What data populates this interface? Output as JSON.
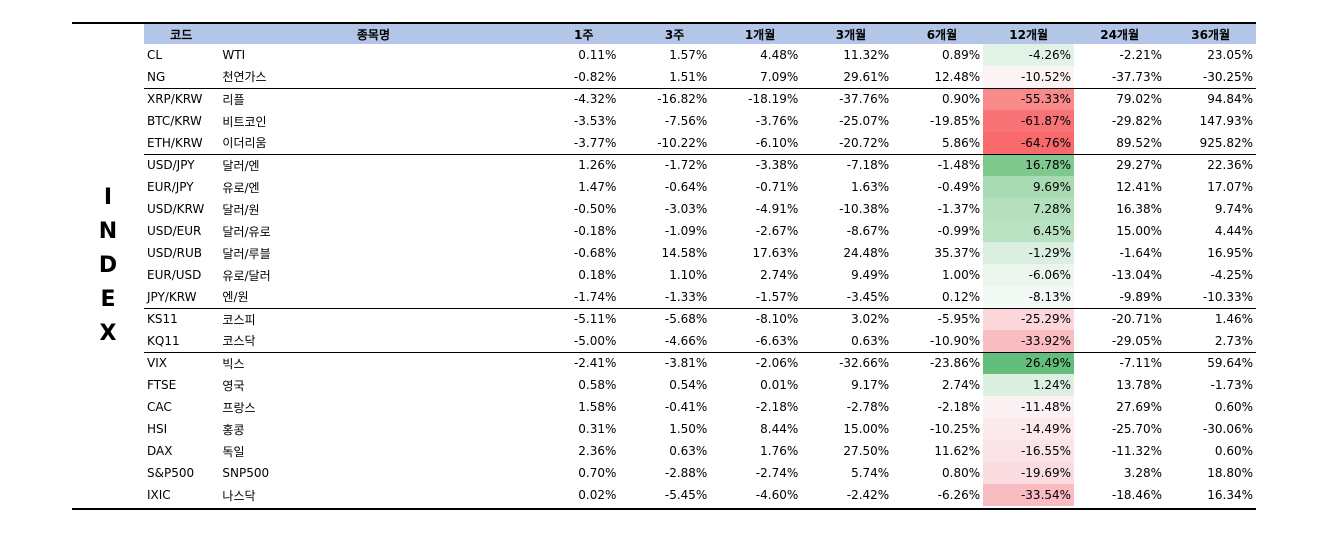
{
  "side_label": [
    "I",
    "N",
    "D",
    "E",
    "X"
  ],
  "headers": [
    "코드",
    "종목명",
    "1주",
    "3주",
    "1개월",
    "3개월",
    "6개월",
    "12개월",
    "24개월",
    "36개월"
  ],
  "rows": [
    {
      "code": "CL",
      "name": "WTI",
      "v": [
        "0.11%",
        "1.57%",
        "4.48%",
        "11.32%",
        "0.89%",
        "-4.26%",
        "-2.21%",
        "23.05%"
      ],
      "bg": "#e1f2e6",
      "gstart": false
    },
    {
      "code": "NG",
      "name": "천연가스",
      "v": [
        "-0.82%",
        "1.51%",
        "7.09%",
        "29.61%",
        "12.48%",
        "-10.52%",
        "-37.73%",
        "-30.25%"
      ],
      "bg": "#fcf3f5",
      "gstart": false
    },
    {
      "code": "XRP/KRW",
      "name": "리플",
      "v": [
        "-4.32%",
        "-16.82%",
        "-18.19%",
        "-37.76%",
        "0.90%",
        "-55.33%",
        "79.02%",
        "94.84%"
      ],
      "bg": "#f88a89",
      "gstart": true
    },
    {
      "code": "BTC/KRW",
      "name": "비트코인",
      "v": [
        "-3.53%",
        "-7.56%",
        "-3.76%",
        "-25.07%",
        "-19.85%",
        "-61.87%",
        "-29.82%",
        "147.93%"
      ],
      "bg": "#f77375",
      "gstart": false
    },
    {
      "code": "ETH/KRW",
      "name": "이더리움",
      "v": [
        "-3.77%",
        "-10.22%",
        "-6.10%",
        "-20.72%",
        "5.86%",
        "-64.76%",
        "89.52%",
        "925.82%"
      ],
      "bg": "#f8696b",
      "gstart": false
    },
    {
      "code": "USD/JPY",
      "name": "달러/엔",
      "v": [
        "1.26%",
        "-1.72%",
        "-3.38%",
        "-7.18%",
        "-1.48%",
        "16.78%",
        "29.27%",
        "22.36%"
      ],
      "bg": "#7fc98f",
      "gstart": true
    },
    {
      "code": "EUR/JPY",
      "name": "유로/엔",
      "v": [
        "1.47%",
        "-0.64%",
        "-0.71%",
        "1.63%",
        "-0.49%",
        "9.69%",
        "12.41%",
        "17.07%"
      ],
      "bg": "#a8dab3",
      "gstart": false
    },
    {
      "code": "USD/KRW",
      "name": "달러/원",
      "v": [
        "-0.50%",
        "-3.03%",
        "-4.91%",
        "-10.38%",
        "-1.37%",
        "7.28%",
        "16.38%",
        "9.74%"
      ],
      "bg": "#b3dfbd",
      "gstart": false
    },
    {
      "code": "USD/EUR",
      "name": "달러/유로",
      "v": [
        "-0.18%",
        "-1.09%",
        "-2.67%",
        "-8.67%",
        "-0.99%",
        "6.45%",
        "15.00%",
        "4.44%"
      ],
      "bg": "#b9e2c3",
      "gstart": false
    },
    {
      "code": "USD/RUB",
      "name": "달러/루블",
      "v": [
        "-0.68%",
        "14.58%",
        "17.63%",
        "24.48%",
        "35.37%",
        "-1.29%",
        "-1.64%",
        "16.95%"
      ],
      "bg": "#daefe0",
      "gstart": false
    },
    {
      "code": "EUR/USD",
      "name": "유로/달러",
      "v": [
        "0.18%",
        "1.10%",
        "2.74%",
        "9.49%",
        "1.00%",
        "-6.06%",
        "-13.04%",
        "-4.25%"
      ],
      "bg": "#ebf6ee",
      "gstart": false
    },
    {
      "code": "JPY/KRW",
      "name": "엔/원",
      "v": [
        "-1.74%",
        "-1.33%",
        "-1.57%",
        "-3.45%",
        "0.12%",
        "-8.13%",
        "-9.89%",
        "-10.33%"
      ],
      "bg": "#f3f9f4",
      "gstart": false
    },
    {
      "code": "KS11",
      "name": "코스피",
      "v": [
        "-5.11%",
        "-5.68%",
        "-8.10%",
        "3.02%",
        "-5.95%",
        "-25.29%",
        "-20.71%",
        "1.46%"
      ],
      "bg": "#fbd6da",
      "gstart": true
    },
    {
      "code": "KQ11",
      "name": "코스닥",
      "v": [
        "-5.00%",
        "-4.66%",
        "-6.63%",
        "0.63%",
        "-10.90%",
        "-33.92%",
        "-29.05%",
        "2.73%"
      ],
      "bg": "#f9bcc0",
      "gstart": false
    },
    {
      "code": "VIX",
      "name": "빅스",
      "v": [
        "-2.41%",
        "-3.81%",
        "-2.06%",
        "-32.66%",
        "-23.86%",
        "26.49%",
        "-7.11%",
        "59.64%"
      ],
      "bg": "#63be7b",
      "gstart": true
    },
    {
      "code": "FTSE",
      "name": "영국",
      "v": [
        "0.58%",
        "0.54%",
        "0.01%",
        "9.17%",
        "2.74%",
        "1.24%",
        "13.78%",
        "-1.73%"
      ],
      "bg": "#dcf0e2",
      "gstart": false
    },
    {
      "code": "CAC",
      "name": "프랑스",
      "v": [
        "1.58%",
        "-0.41%",
        "-2.18%",
        "-2.78%",
        "-2.18%",
        "-11.48%",
        "27.69%",
        "0.60%"
      ],
      "bg": "#fcf1f3",
      "gstart": false
    },
    {
      "code": "HSI",
      "name": "홍콩",
      "v": [
        "0.31%",
        "1.50%",
        "8.44%",
        "15.00%",
        "-10.25%",
        "-14.49%",
        "-25.70%",
        "-30.06%"
      ],
      "bg": "#fbe9ec",
      "gstart": false
    },
    {
      "code": "DAX",
      "name": "독일",
      "v": [
        "2.36%",
        "0.63%",
        "1.76%",
        "27.50%",
        "11.62%",
        "-16.55%",
        "-11.32%",
        "0.60%"
      ],
      "bg": "#fbe4e7",
      "gstart": false
    },
    {
      "code": "S&P500",
      "name": "SNP500",
      "v": [
        "0.70%",
        "-2.88%",
        "-2.74%",
        "5.74%",
        "0.80%",
        "-19.69%",
        "3.28%",
        "18.80%"
      ],
      "bg": "#fbdde1",
      "gstart": false
    },
    {
      "code": "IXIC",
      "name": "나스닥",
      "v": [
        "0.02%",
        "-5.45%",
        "-4.60%",
        "-2.42%",
        "-6.26%",
        "-33.54%",
        "-18.46%",
        "16.34%"
      ],
      "bg": "#f9bdc1",
      "gstart": false
    }
  ]
}
